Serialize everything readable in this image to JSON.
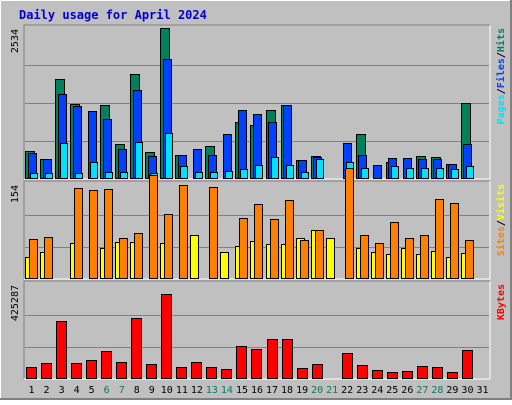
{
  "chart_data": {
    "type": "bar",
    "title": "Daily usage for April 2024",
    "days": [
      "1",
      "2",
      "3",
      "4",
      "5",
      "6",
      "7",
      "8",
      "9",
      "10",
      "11",
      "12",
      "13",
      "14",
      "15",
      "16",
      "17",
      "18",
      "19",
      "20",
      "21",
      "22",
      "23",
      "24",
      "25",
      "26",
      "27",
      "28",
      "29",
      "30",
      "31"
    ],
    "weekend_days": [
      "6",
      "7",
      "13",
      "14",
      "20",
      "21",
      "27",
      "28"
    ],
    "colors": {
      "title": "#0000cc",
      "hits": "#00805b",
      "files": "#0040ff",
      "pages": "#00e0ff",
      "visits": "#ffff00",
      "sites": "#ff8000",
      "kbytes": "#ff0000",
      "weekday_label": "#000000",
      "weekend_label": "#00805b",
      "plot_bg": "#c0c0c0",
      "gridline": "#808080"
    },
    "panels": [
      {
        "id": "hits-files-pages",
        "ymax_label": "2534",
        "ymax": 2534,
        "legend": [
          {
            "text": "Pages",
            "color_key": "pages"
          },
          {
            "text": "/",
            "color_key": "separator"
          },
          {
            "text": "Files",
            "color_key": "files"
          },
          {
            "text": "/",
            "color_key": "separator"
          },
          {
            "text": "Hits",
            "color_key": "hits"
          }
        ],
        "series": [
          {
            "name": "Hits",
            "color_key": "hits",
            "values": [
              470,
              330,
              1670,
              1260,
              0,
              1250,
              590,
              1760,
              450,
              2534,
              400,
              0,
              550,
              0,
              950,
              900,
              1150,
              1250,
              320,
              390,
              0,
              0,
              750,
              0,
              280,
              0,
              380,
              370,
              260,
              1270,
              0
            ]
          },
          {
            "name": "Files",
            "color_key": "files",
            "values": [
              430,
              330,
              1430,
              1220,
              1140,
              1000,
              510,
              1500,
              390,
              2020,
              400,
              500,
              400,
              750,
              1160,
              1090,
              960,
              1250,
              320,
              370,
              0,
              610,
              410,
              240,
              360,
              360,
              330,
              330,
              250,
              580,
              0
            ]
          },
          {
            "name": "Pages",
            "color_key": "pages",
            "values": [
              100,
              100,
              610,
              100,
              290,
              110,
              120,
              620,
              100,
              770,
              210,
              110,
              120,
              140,
              170,
              230,
              370,
              230,
              120,
              340,
              0,
              280,
              180,
              0,
              220,
              190,
              180,
              190,
              160,
              210,
              0
            ]
          }
        ]
      },
      {
        "id": "visits-sites",
        "ymax_label": "154",
        "ymax": 154,
        "legend": [
          {
            "text": "Sites",
            "color_key": "sites"
          },
          {
            "text": "/",
            "color_key": "separator"
          },
          {
            "text": "Visits",
            "color_key": "visits"
          }
        ],
        "series": [
          {
            "name": "Visits",
            "color_key": "visits",
            "values": [
              36,
              43,
              0,
              58,
              0,
              51,
              60,
              60,
              0,
              58,
              0,
              71,
              0,
              44,
              53,
              62,
              57,
              56,
              66,
              79,
              66,
              0,
              50,
              44,
              41,
              50,
              40,
              46,
              35,
              42,
              0
            ]
          },
          {
            "name": "Sites",
            "color_key": "sites",
            "values": [
              65,
              68,
              0,
              148,
              145,
              146,
              66,
              74,
              169,
              106,
              152,
              0,
              149,
              0,
              99,
              121,
              98,
              128,
              64,
              79,
              0,
              180,
              71,
              59,
              92,
              66,
              71,
              129,
              124,
              63,
              0
            ]
          }
        ]
      },
      {
        "id": "kbytes",
        "ymax_label": "425287",
        "ymax": 425287,
        "legend": [
          {
            "text": "KBytes",
            "color_key": "kbytes"
          }
        ],
        "series": [
          {
            "name": "KBytes",
            "color_key": "kbytes",
            "values": [
              55000,
              72000,
              260000,
              72000,
              85000,
              124000,
              78000,
              273000,
              65000,
              380000,
              55000,
              75000,
              52000,
              46000,
              149000,
              135000,
              177000,
              180000,
              50000,
              67000,
              0,
              115000,
              63000,
              40000,
              33000,
              35000,
              60000,
              52000,
              30000,
              130000,
              0
            ]
          }
        ]
      }
    ]
  }
}
